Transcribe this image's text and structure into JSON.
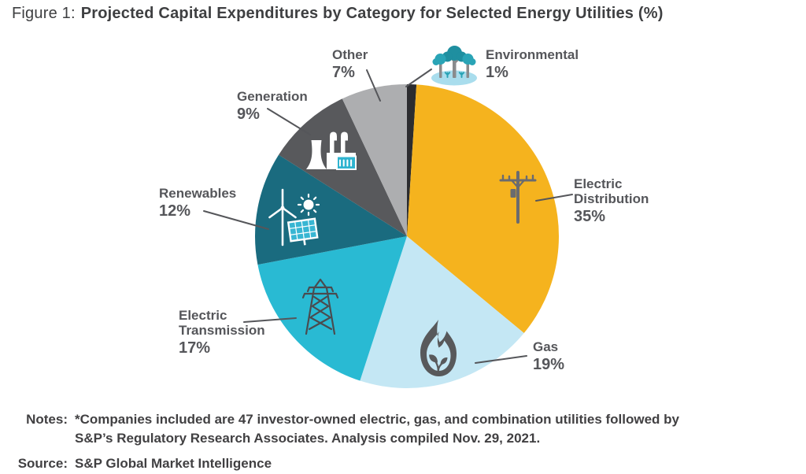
{
  "figure": {
    "prefix": "Figure 1:",
    "title": "Projected Capital Expenditures by Category for Selected Energy Utilities (%)"
  },
  "chart_data": {
    "type": "pie",
    "title": "Projected Capital Expenditures by Category for Selected Energy Utilities (%)",
    "unit": "%",
    "direction": "clockwise",
    "start_angle_deg": 0,
    "center": [
      517,
      300
    ],
    "radius": 193,
    "segments": [
      {
        "label": "Environmental",
        "value": 1,
        "pct": "1%",
        "color": "#2B2C2F",
        "icon": "trees-icon"
      },
      {
        "label": "Electric Distribution",
        "value": 35,
        "pct": "35%",
        "color": "#F5B31E",
        "icon": "utility-pole-icon"
      },
      {
        "label": "Gas",
        "value": 19,
        "pct": "19%",
        "color": "#C4E7F4",
        "icon": "flame-leaf-icon"
      },
      {
        "label": "Electric Transmission",
        "value": 17,
        "pct": "17%",
        "color": "#29BAD3",
        "icon": "transmission-tower-icon"
      },
      {
        "label": "Renewables",
        "value": 12,
        "pct": "12%",
        "color": "#1A6B7F",
        "icon": "wind-solar-sun-icon"
      },
      {
        "label": "Generation",
        "value": 9,
        "pct": "9%",
        "color": "#58595C",
        "icon": "power-plant-icon"
      },
      {
        "label": "Other",
        "value": 7,
        "pct": "7%",
        "color": "#ADAEB0",
        "icon": null
      }
    ]
  },
  "notes": {
    "label": "Notes:",
    "line1": "*Companies included are 47 investor-owned electric, gas, and combination utilities followed by",
    "line2": "S&P’s Regulatory Research Associates. Analysis compiled Nov. 29, 2021."
  },
  "source": {
    "label": "Source:",
    "text": "S&P Global Market Intelligence"
  },
  "colors": {
    "title_text": "#3E3F41",
    "label_text": "#55565A",
    "leader_line": "#55565A",
    "background": "#FFFFFF"
  }
}
